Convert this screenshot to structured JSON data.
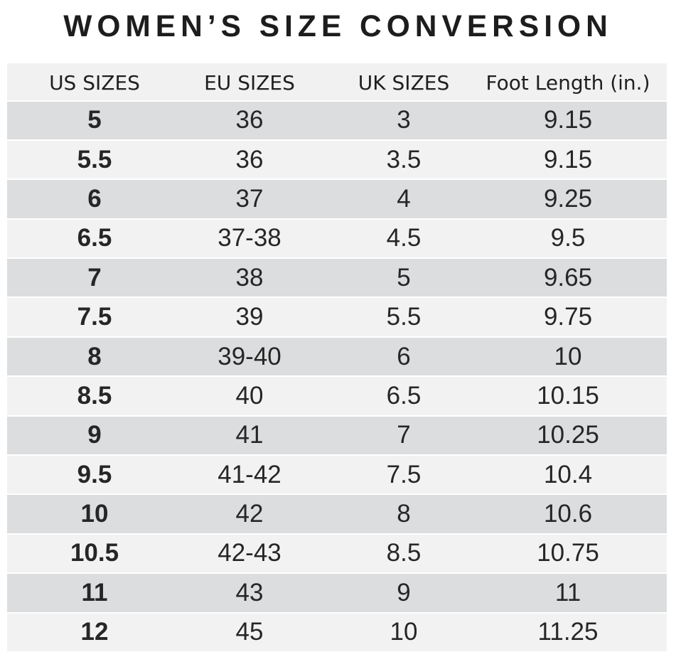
{
  "title": "WOMEN’S SIZE CONVERSION",
  "chart_data": {
    "type": "table",
    "title": "WOMEN’S SIZE CONVERSION",
    "columns": [
      "US SIZES",
      "EU SIZES",
      "UK SIZES",
      "Foot Length (in.)"
    ],
    "rows": [
      [
        "5",
        "36",
        "3",
        "9.15"
      ],
      [
        "5.5",
        "36",
        "3.5",
        "9.15"
      ],
      [
        "6",
        "37",
        "4",
        "9.25"
      ],
      [
        "6.5",
        "37-38",
        "4.5",
        "9.5"
      ],
      [
        "7",
        "38",
        "5",
        "9.65"
      ],
      [
        "7.5",
        "39",
        "5.5",
        "9.75"
      ],
      [
        "8",
        "39-40",
        "6",
        "10"
      ],
      [
        "8.5",
        "40",
        "6.5",
        "10.15"
      ],
      [
        "9",
        "41",
        "7",
        "10.25"
      ],
      [
        "9.5",
        "41-42",
        "7.5",
        "10.4"
      ],
      [
        "10",
        "42",
        "8",
        "10.6"
      ],
      [
        "10.5",
        "42-43",
        "8.5",
        "10.75"
      ],
      [
        "11",
        "43",
        "9",
        "11"
      ],
      [
        "12",
        "45",
        "10",
        "11.25"
      ]
    ],
    "layout": {
      "row_striping": "alternating",
      "stripe_dark": "#dcddde",
      "stripe_light": "#f2f2f3",
      "header_background": "#f1f1f2",
      "text_color": "#262626",
      "first_column_bold": true
    }
  }
}
